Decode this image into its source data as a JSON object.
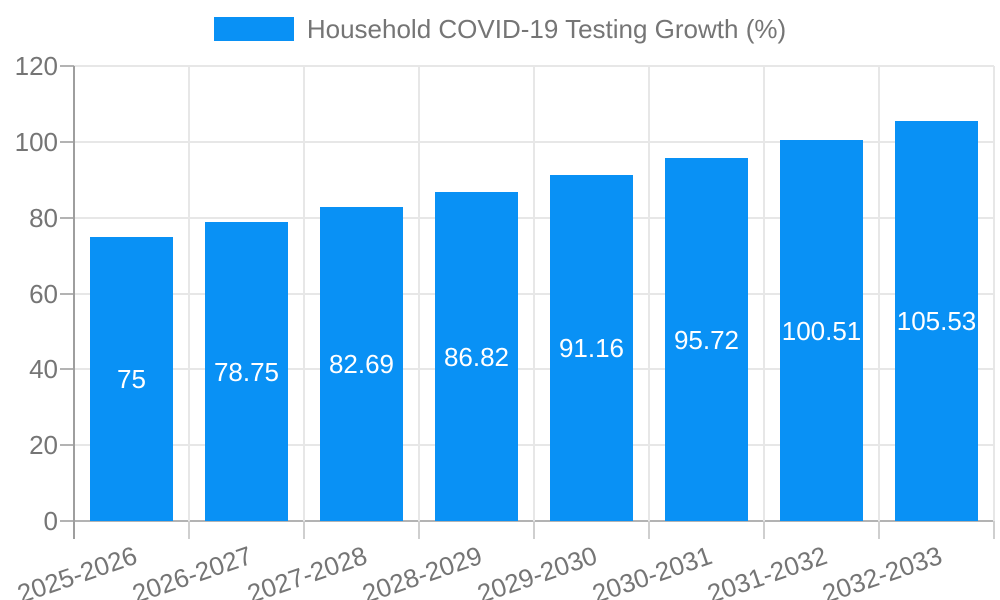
{
  "chart_data": {
    "type": "bar",
    "title": "Household COVID-19 Testing Growth (%)",
    "categories": [
      "2025-2026",
      "2026-2027",
      "2027-2028",
      "2028-2029",
      "2029-2030",
      "2030-2031",
      "2031-2032",
      "2032-2033"
    ],
    "values": [
      75,
      78.75,
      82.69,
      86.82,
      91.16,
      95.72,
      100.51,
      105.53
    ],
    "bar_labels": [
      "75",
      "78.75",
      "82.69",
      "86.82",
      "91.16",
      "95.72",
      "100.51",
      "105.53"
    ],
    "xlabel": "",
    "ylabel": "",
    "ylim": [
      0,
      120
    ],
    "yticks": [
      0,
      20,
      40,
      60,
      80,
      100,
      120
    ],
    "grid": true,
    "legend_position": "top"
  },
  "legend": {
    "label": "Household COVID-19 Testing Growth (%)"
  },
  "colors": {
    "bar": "#0991F5",
    "bar_label": "#FFFFFF",
    "gridline": "#E7E7E7",
    "axis_line": "#9E9E9E",
    "baseline": "#B3B3B3",
    "tick_y": "#B3B3B3",
    "tick_x": "#CFCFCF",
    "text": "#757575",
    "background": "#FFFFFF"
  }
}
